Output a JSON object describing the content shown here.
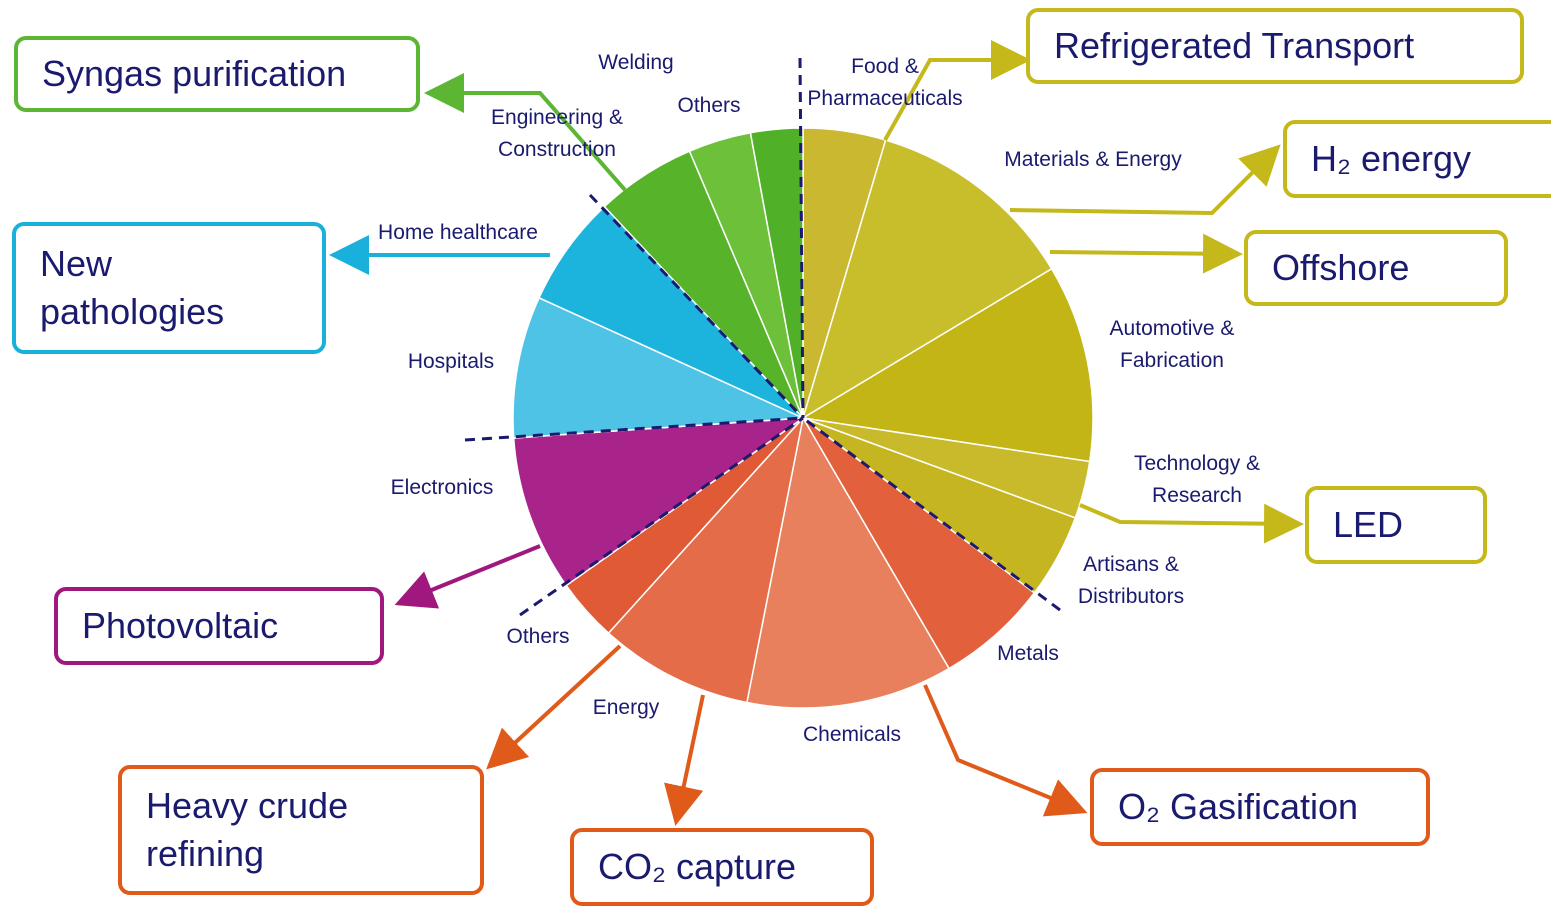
{
  "chart_data": {
    "type": "pie",
    "categories": [
      "Food &\nPharmaceuticals",
      "Materials & Energy",
      "Automotive &\nFabrication",
      "Technology &\nResearch",
      "Artisans &\nDistributors",
      "Metals",
      "Chemicals",
      "Energy",
      "Others",
      "Electronics",
      "Hospitals",
      "Home healthcare",
      "Engineering &\nConstruction",
      "Others",
      "Welding"
    ],
    "values": [
      4.6,
      11.8,
      11,
      3.2,
      4.7,
      6.3,
      11.5,
      8.6,
      3.5,
      8.7,
      7.9,
      6.2,
      5.6,
      3.5,
      2.9
    ],
    "colors": [
      "#c9b830",
      "#c8bd2a",
      "#c4b516",
      "#c9ba2c",
      "#c5b520",
      "#e2603c",
      "#e8805e",
      "#e46c48",
      "#e05a35",
      "#a8238a",
      "#4fc3e6",
      "#1cb3dd",
      "#56b32a",
      "#6cc03a",
      "#50b028"
    ]
  },
  "callouts": [
    "Syngas purification",
    "New\npathologies",
    "Photovoltaic",
    "Heavy crude\nrefining",
    "CO₂ capture",
    "O₂ Gasification",
    "Refrigerated Transport",
    "H₂ energy",
    "Offshore",
    "LED"
  ]
}
